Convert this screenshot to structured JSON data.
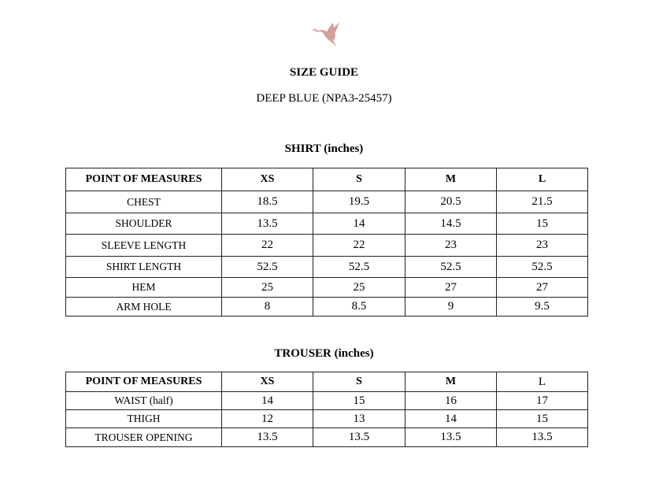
{
  "logo": {
    "icon": "dove-with-olive-branch",
    "color": "#d4a09a"
  },
  "title": "SIZE GUIDE",
  "subtitle": "DEEP BLUE (NPA3-25457)",
  "shirt": {
    "heading": "SHIRT (inches)",
    "headers": [
      "POINT OF MEASURES",
      "XS",
      "S",
      "M",
      "L"
    ],
    "rows": [
      [
        "CHEST",
        "18.5",
        "19.5",
        "20.5",
        "21.5"
      ],
      [
        "SHOULDER",
        "13.5",
        "14",
        "14.5",
        "15"
      ],
      [
        "SLEEVE LENGTH",
        "22",
        "22",
        "23",
        "23"
      ],
      [
        "SHIRT LENGTH",
        "52.5",
        "52.5",
        "52.5",
        "52.5"
      ],
      [
        "HEM",
        "25",
        "25",
        "27",
        "27"
      ],
      [
        "ARM HOLE",
        "8",
        "8.5",
        "9",
        "9.5"
      ]
    ]
  },
  "trouser": {
    "heading": "TROUSER (inches)",
    "headers": [
      "POINT OF MEASURES",
      "XS",
      "S",
      "M",
      "L"
    ],
    "rows": [
      [
        "WAIST (half)",
        "14",
        "15",
        "16",
        "17"
      ],
      [
        "THIGH",
        "12",
        "13",
        "14",
        "15"
      ],
      [
        "TROUSER OPENING",
        "13.5",
        "13.5",
        "13.5",
        "13.5"
      ]
    ]
  }
}
